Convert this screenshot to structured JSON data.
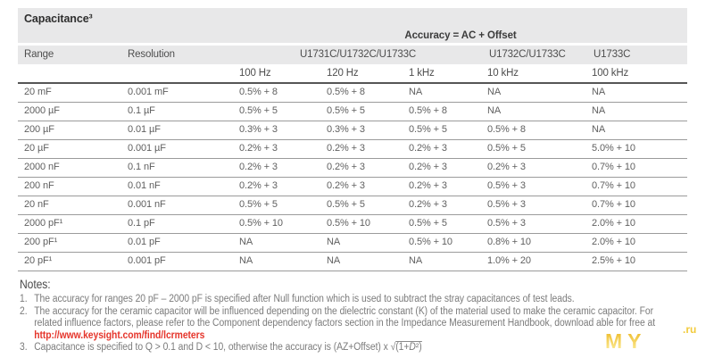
{
  "page": {
    "title": "Capacitance³"
  },
  "table": {
    "accuracy_header": "Accuracy = AC + Offset",
    "col_range": "Range",
    "col_resolution": "Resolution",
    "model_group_1": "U1731C/U1732C/U1733C",
    "model_group_2": "U1732C/U1733C",
    "model_group_3": "U1733C",
    "frequencies": [
      "100 Hz",
      "120 Hz",
      "1 kHz",
      "10 kHz",
      "100 kHz"
    ],
    "rows": [
      {
        "range": "20 mF",
        "resolution": "0.001 mF",
        "values": [
          "0.5% + 8",
          "0.5% + 8",
          "NA",
          "NA",
          "NA"
        ]
      },
      {
        "range": "2000 µF",
        "resolution": "0.1 µF",
        "values": [
          "0.5% + 5",
          "0.5% + 5",
          "0.5% + 8",
          "NA",
          "NA"
        ]
      },
      {
        "range": "200 µF",
        "resolution": "0.01 µF",
        "values": [
          "0.3% + 3",
          "0.3% + 3",
          "0.5% + 5",
          "0.5% + 8",
          "NA"
        ]
      },
      {
        "range": "20 µF",
        "resolution": "0.001 µF",
        "values": [
          "0.2% + 3",
          "0.2% + 3",
          "0.2% + 3",
          "0.5% + 5",
          "5.0% + 10"
        ]
      },
      {
        "range": "2000 nF",
        "resolution": "0.1 nF",
        "values": [
          "0.2% + 3",
          "0.2% + 3",
          "0.2% + 3",
          "0.2% + 3",
          "0.7% + 10"
        ]
      },
      {
        "range": "200 nF",
        "resolution": "0.01 nF",
        "values": [
          "0.2% + 3",
          "0.2% + 3",
          "0.2% + 3",
          "0.5% + 3",
          "0.7% + 10"
        ]
      },
      {
        "range": "20 nF",
        "resolution": "0.001 nF",
        "values": [
          "0.5% + 5",
          "0.5% + 5",
          "0.2% + 3",
          "0.5% + 3",
          "0.7% + 10"
        ]
      },
      {
        "range": "2000 pF¹",
        "resolution": "0.1 pF",
        "values": [
          "0.5% + 10",
          "0.5% + 10",
          "0.5% + 5",
          "0.5% + 3",
          "2.0% + 10"
        ]
      },
      {
        "range": "200 pF¹",
        "resolution": "0.01 pF",
        "values": [
          "NA",
          "NA",
          "0.5% + 10",
          "0.8% + 10",
          "2.0% + 10"
        ]
      },
      {
        "range": "20 pF¹",
        "resolution": "0.001 pF",
        "values": [
          "NA",
          "NA",
          "NA",
          "1.0% + 20",
          "2.5% + 10"
        ]
      }
    ]
  },
  "notes": {
    "heading": "Notes:",
    "item1": {
      "num": "1.",
      "line1": "The accuracy for ranges 20 pF – 2000 pF is specified after Null function which is used to subtract the stray capacitances of test leads."
    },
    "item2": {
      "num": "2.",
      "line1": "The accuracy for the ceramic capacitor will be influenced depending on the dielectric constant (K) of the material used to make the ceramic capacitor. For",
      "line2": "related influence factors, please refer to the Component dependency factors section in the Impedance Measurement Handbook, download able for free at",
      "link": "http://www.keysight.com/find/lcrmeters"
    },
    "item3": {
      "num": "3.",
      "text": "Capacitance is specified to Q > 0.1 and D < 10, otherwise the accuracy is (AZ+Offset) x ",
      "sqrt": "√",
      "radicand_pre": "(1+",
      "radicand_var": "D",
      "radicand_post": "²)"
    }
  },
  "watermark": {
    "big": "MY",
    "small": ".ru"
  },
  "colors": {
    "link_red": "#e5352b",
    "band_gray": "#e8e8e9",
    "rule_dark": "#565656",
    "watermark_yellow": "#f2cb3d"
  }
}
